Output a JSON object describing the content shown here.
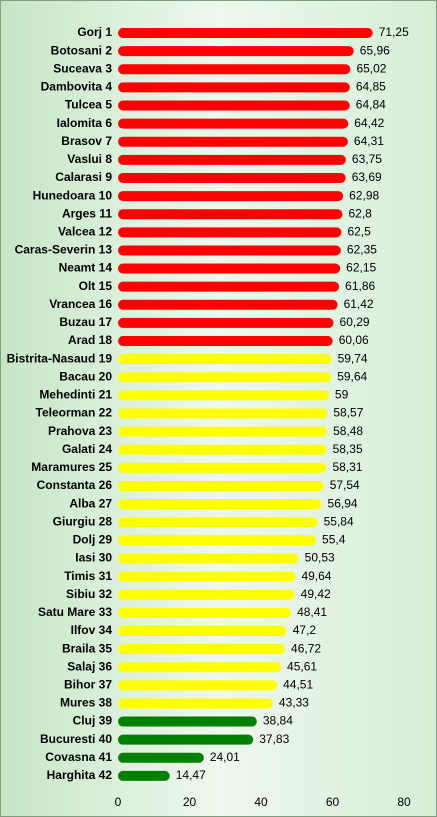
{
  "chart_data": {
    "type": "bar",
    "orientation": "horizontal",
    "categories": [
      "Gorj 1",
      "Botosani 2",
      "Suceava 3",
      "Dambovita 4",
      "Tulcea 5",
      "Ialomita 6",
      "Brasov 7",
      "Vaslui 8",
      "Calarasi 9",
      "Hunedoara 10",
      "Arges 11",
      "Valcea 12",
      "Caras-Severin 13",
      "Neamt 14",
      "Olt 15",
      "Vrancea 16",
      "Buzau 17",
      "Arad 18",
      "Bistrita-Nasaud 19",
      "Bacau 20",
      "Mehedinti 21",
      "Teleorman 22",
      "Prahova 23",
      "Galati 24",
      "Maramures 25",
      "Constanta 26",
      "Alba 27",
      "Giurgiu 28",
      "Dolj 29",
      "Iasi 30",
      "Timis 31",
      "Sibiu 32",
      "Satu Mare 33",
      "Ilfov 34",
      "Braila 35",
      "Salaj 36",
      "Bihor 37",
      "Mures 38",
      "Cluj 39",
      "Bucuresti 40",
      "Covasna 41",
      "Harghita 42"
    ],
    "values": [
      71.25,
      65.96,
      65.02,
      64.85,
      64.84,
      64.42,
      64.31,
      63.75,
      63.69,
      62.98,
      62.8,
      62.5,
      62.35,
      62.15,
      61.86,
      61.42,
      60.29,
      60.06,
      59.74,
      59.64,
      59,
      58.57,
      58.48,
      58.35,
      58.31,
      57.54,
      56.94,
      55.84,
      55.4,
      50.53,
      49.64,
      49.42,
      48.41,
      47.2,
      46.72,
      45.61,
      44.51,
      43.33,
      38.84,
      37.83,
      24.01,
      14.47
    ],
    "value_labels": [
      "71,25",
      "65,96",
      "65,02",
      "64,85",
      "64,84",
      "64,42",
      "64,31",
      "63,75",
      "63,69",
      "62,98",
      "62,8",
      "62,5",
      "62,35",
      "62,15",
      "61,86",
      "61,42",
      "60,29",
      "60,06",
      "59,74",
      "59,64",
      "59",
      "58,57",
      "58,48",
      "58,35",
      "58,31",
      "57,54",
      "56,94",
      "55,84",
      "55,4",
      "50,53",
      "49,64",
      "49,42",
      "48,41",
      "47,2",
      "46,72",
      "45,61",
      "44,51",
      "43,33",
      "38,84",
      "37,83",
      "24,01",
      "14,47"
    ],
    "colors": [
      "#ff0000",
      "#ff0000",
      "#ff0000",
      "#ff0000",
      "#ff0000",
      "#ff0000",
      "#ff0000",
      "#ff0000",
      "#ff0000",
      "#ff0000",
      "#ff0000",
      "#ff0000",
      "#ff0000",
      "#ff0000",
      "#ff0000",
      "#ff0000",
      "#ff0000",
      "#ff0000",
      "#ffff00",
      "#ffff00",
      "#ffff00",
      "#ffff00",
      "#ffff00",
      "#ffff00",
      "#ffff00",
      "#ffff00",
      "#ffff00",
      "#ffff00",
      "#ffff00",
      "#ffff00",
      "#ffff00",
      "#ffff00",
      "#ffff00",
      "#ffff00",
      "#ffff00",
      "#ffff00",
      "#ffff00",
      "#ffff00",
      "#008000",
      "#008000",
      "#008000",
      "#008000"
    ],
    "xlim": [
      0,
      80
    ],
    "xticks": [
      0,
      20,
      40,
      60,
      80
    ],
    "grid": false
  }
}
